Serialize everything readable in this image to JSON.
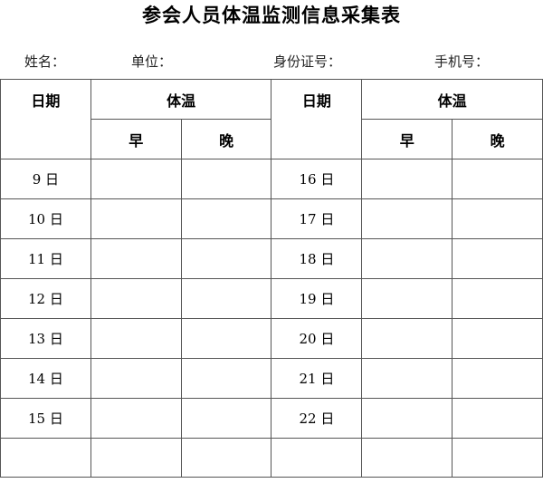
{
  "title": "参会人员体温监测信息采集表",
  "fields": {
    "name": "姓名：",
    "unit": "单位：",
    "id_card": "身份证号：",
    "phone": "手机号："
  },
  "table": {
    "date_header": "日期",
    "temp_header": "体温",
    "morning": "早",
    "evening": "晚",
    "left_days": [
      "9 日",
      "10 日",
      "11 日",
      "12 日",
      "13 日",
      "14 日",
      "15 日",
      ""
    ],
    "right_days": [
      "16 日",
      "17 日",
      "18 日",
      "19 日",
      "20 日",
      "21 日",
      "22 日",
      ""
    ]
  }
}
